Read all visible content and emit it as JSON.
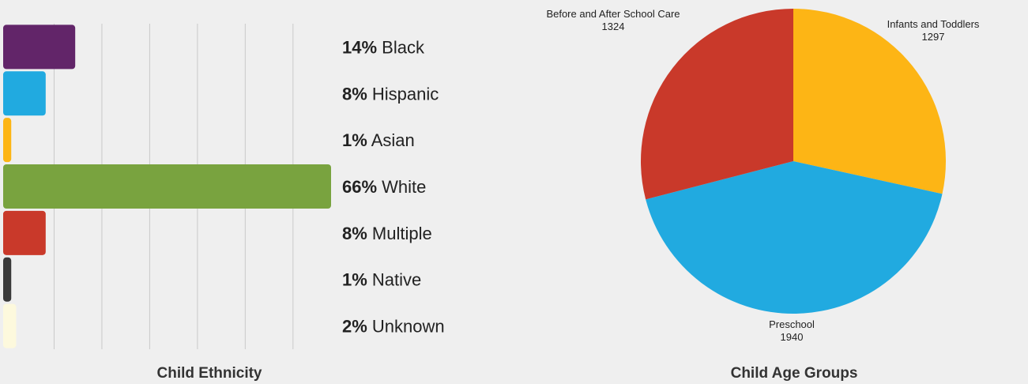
{
  "chart_data": [
    {
      "type": "bar",
      "orientation": "horizontal",
      "title": "Child Ethnicity",
      "categories": [
        "Black",
        "Hispanic",
        "Asian",
        "White",
        "Multiple",
        "Native",
        "Unknown"
      ],
      "values": [
        14,
        8,
        1,
        66,
        8,
        1,
        2
      ],
      "value_suffix": "%",
      "colors": [
        "#622569",
        "#21aae0",
        "#fdb515",
        "#79a33f",
        "#c9392a",
        "#3a3a3a",
        "#fdf9dd"
      ],
      "xlim": [
        0,
        66
      ],
      "grid": true
    },
    {
      "type": "pie",
      "title": "Child Age Groups",
      "categories": [
        "Infants and Toddlers",
        "Preschool",
        "Before and After School Care"
      ],
      "values": [
        1297,
        1940,
        1324
      ],
      "colors": [
        "#fdb515",
        "#21aae0",
        "#c9392a"
      ]
    }
  ]
}
